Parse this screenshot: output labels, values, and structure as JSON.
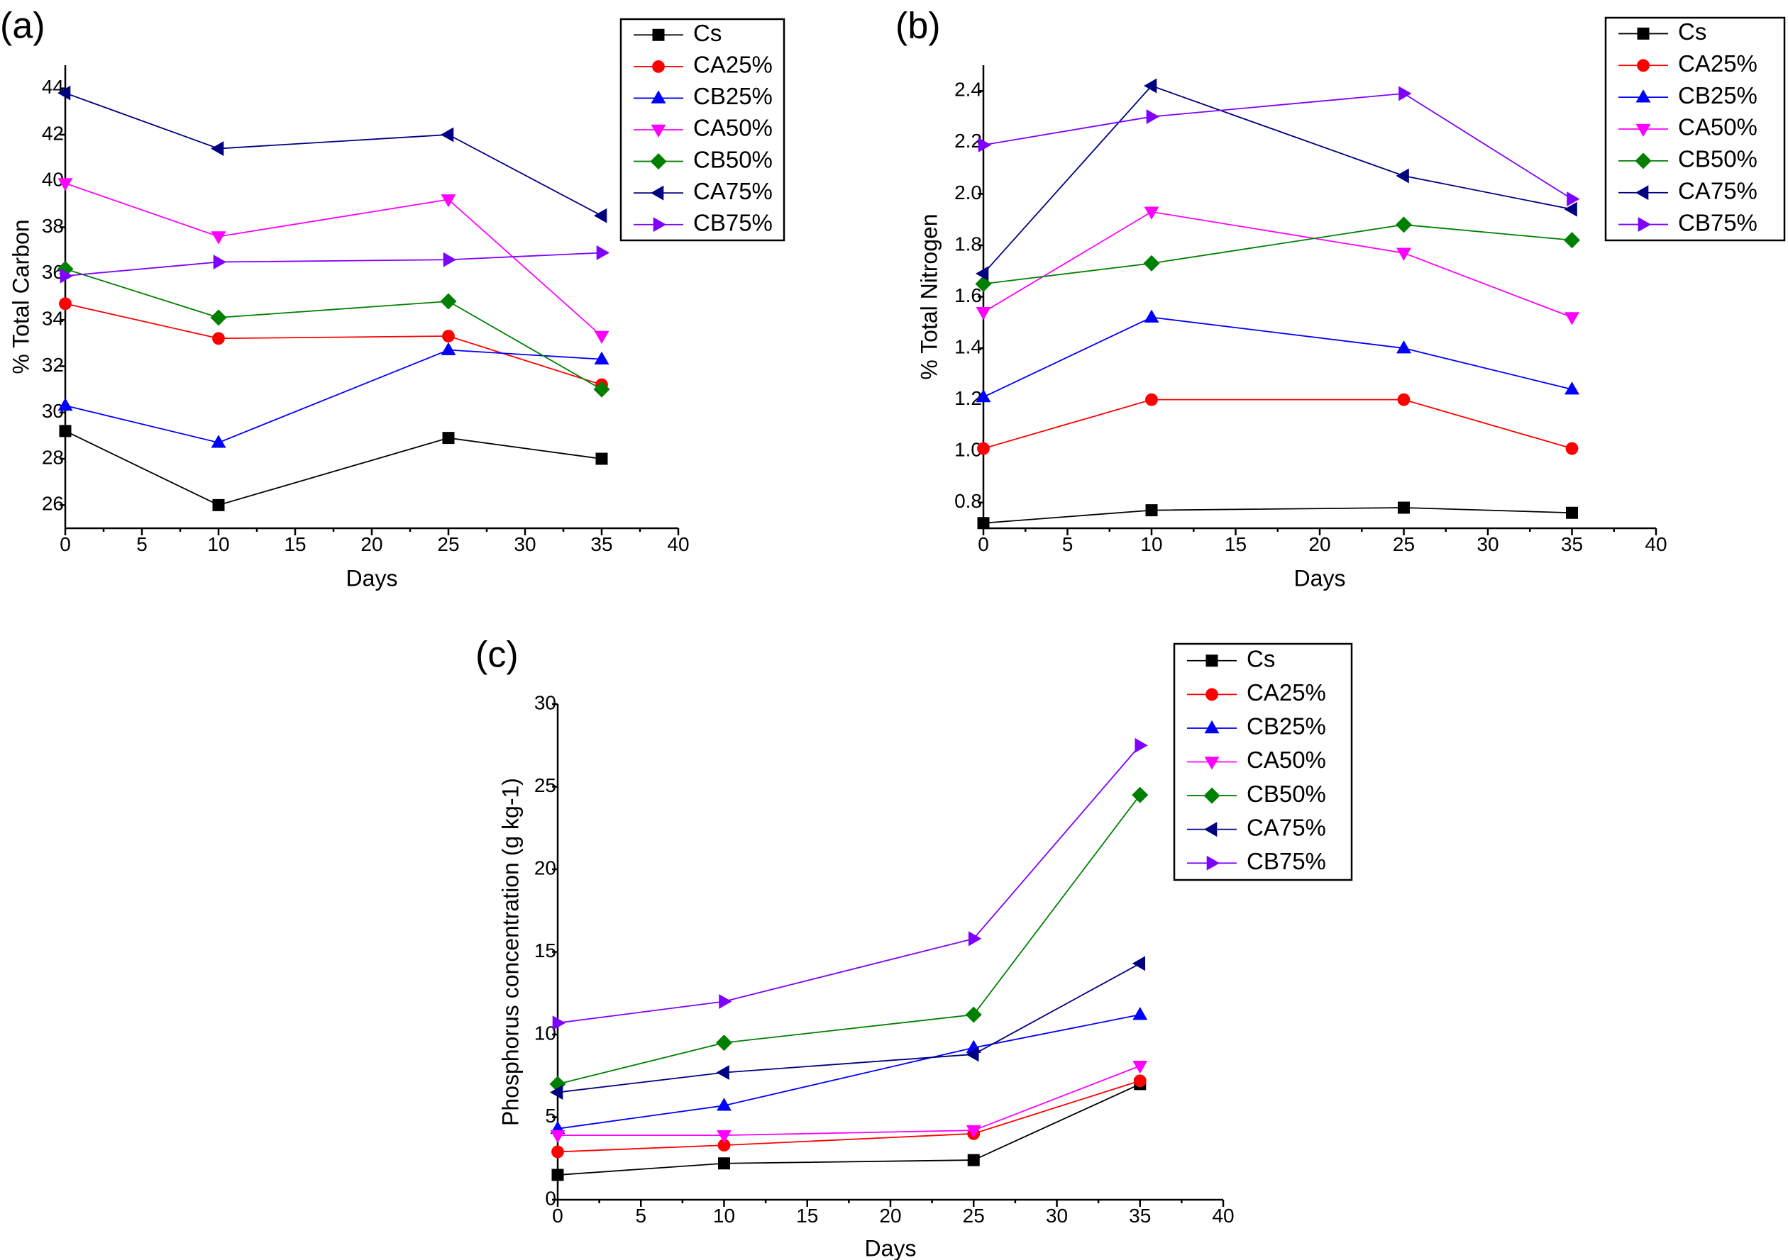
{
  "chart_data": [
    {
      "panel": "(a)",
      "type": "line",
      "xlabel": "Days",
      "ylabel": "% Total Carbon",
      "xlim": [
        0,
        40
      ],
      "ylim": [
        25,
        45
      ],
      "xticks": [
        "0",
        "5",
        "10",
        "15",
        "20",
        "25",
        "30",
        "35",
        "40"
      ],
      "yticks": [
        "26",
        "28",
        "30",
        "32",
        "34",
        "36",
        "38",
        "40",
        "42",
        "44"
      ],
      "x": [
        0,
        10,
        25,
        35
      ],
      "legend_position": "top-right",
      "grid": false,
      "series": [
        {
          "name": "Cs",
          "color": "#000000",
          "marker": "square",
          "values": [
            29.2,
            26.0,
            28.9,
            28.0
          ]
        },
        {
          "name": "CA25%",
          "color": "#ff0000",
          "marker": "circle",
          "values": [
            34.7,
            33.2,
            33.3,
            31.2
          ]
        },
        {
          "name": "CB25%",
          "color": "#0000ff",
          "marker": "triangle-up",
          "values": [
            30.3,
            28.7,
            32.7,
            32.3
          ]
        },
        {
          "name": "CA50%",
          "color": "#ff00ff",
          "marker": "triangle-down",
          "values": [
            39.9,
            37.6,
            39.2,
            33.3
          ]
        },
        {
          "name": "CB50%",
          "color": "#008000",
          "marker": "diamond",
          "values": [
            36.2,
            34.1,
            34.8,
            31.0
          ]
        },
        {
          "name": "CA75%",
          "color": "#000080",
          "marker": "triangle-left",
          "values": [
            43.8,
            41.4,
            42.0,
            38.5
          ]
        },
        {
          "name": "CB75%",
          "color": "#8000ff",
          "marker": "triangle-right",
          "values": [
            35.9,
            36.5,
            36.6,
            36.9
          ]
        }
      ]
    },
    {
      "panel": "(b)",
      "type": "line",
      "xlabel": "Days",
      "ylabel": "% Total Nitrogen",
      "xlim": [
        0,
        40
      ],
      "ylim": [
        0.7,
        2.5
      ],
      "xticks": [
        "0",
        "5",
        "10",
        "15",
        "20",
        "25",
        "30",
        "35",
        "40"
      ],
      "yticks": [
        "0.8",
        "1.0",
        "1.2",
        "1.4",
        "1.6",
        "1.8",
        "2.0",
        "2.2",
        "2.4"
      ],
      "x": [
        0,
        10,
        25,
        35
      ],
      "legend_position": "top-right",
      "grid": false,
      "series": [
        {
          "name": "Cs",
          "color": "#000000",
          "marker": "square",
          "values": [
            0.72,
            0.77,
            0.78,
            0.76
          ]
        },
        {
          "name": "CA25%",
          "color": "#ff0000",
          "marker": "circle",
          "values": [
            1.01,
            1.2,
            1.2,
            1.01
          ]
        },
        {
          "name": "CB25%",
          "color": "#0000ff",
          "marker": "triangle-up",
          "values": [
            1.21,
            1.52,
            1.4,
            1.24
          ]
        },
        {
          "name": "CA50%",
          "color": "#ff00ff",
          "marker": "triangle-down",
          "values": [
            1.54,
            1.93,
            1.77,
            1.52
          ]
        },
        {
          "name": "CB50%",
          "color": "#008000",
          "marker": "diamond",
          "values": [
            1.65,
            1.73,
            1.88,
            1.82
          ]
        },
        {
          "name": "CA75%",
          "color": "#000080",
          "marker": "triangle-left",
          "values": [
            1.69,
            2.42,
            2.07,
            1.94
          ]
        },
        {
          "name": "CB75%",
          "color": "#8000ff",
          "marker": "triangle-right",
          "values": [
            2.19,
            2.3,
            2.39,
            1.98
          ]
        }
      ]
    },
    {
      "panel": "(c)",
      "type": "line",
      "xlabel": "Days",
      "ylabel": "Phosphorus concentration (g kg-1)",
      "xlim": [
        0,
        40
      ],
      "ylim": [
        0,
        30
      ],
      "xticks": [
        "0",
        "5",
        "10",
        "15",
        "20",
        "25",
        "30",
        "35",
        "40"
      ],
      "yticks": [
        "0",
        "5",
        "10",
        "15",
        "20",
        "25",
        "30"
      ],
      "x": [
        0,
        10,
        25,
        35
      ],
      "legend_position": "top-right",
      "grid": false,
      "series": [
        {
          "name": "Cs",
          "color": "#000000",
          "marker": "square",
          "values": [
            1.5,
            2.2,
            2.4,
            7.0
          ]
        },
        {
          "name": "CA25%",
          "color": "#ff0000",
          "marker": "circle",
          "values": [
            2.9,
            3.3,
            4.0,
            7.2
          ]
        },
        {
          "name": "CB25%",
          "color": "#0000ff",
          "marker": "triangle-up",
          "values": [
            4.3,
            5.7,
            9.2,
            11.2
          ]
        },
        {
          "name": "CA50%",
          "color": "#ff00ff",
          "marker": "triangle-down",
          "values": [
            3.9,
            3.9,
            4.2,
            8.1
          ]
        },
        {
          "name": "CB50%",
          "color": "#008000",
          "marker": "diamond",
          "values": [
            7.0,
            9.5,
            11.2,
            24.5
          ]
        },
        {
          "name": "CA75%",
          "color": "#000080",
          "marker": "triangle-left",
          "values": [
            6.5,
            7.7,
            8.8,
            14.3
          ]
        },
        {
          "name": "CB75%",
          "color": "#8000ff",
          "marker": "triangle-right",
          "values": [
            10.7,
            12.0,
            15.8,
            27.5
          ]
        }
      ]
    }
  ]
}
